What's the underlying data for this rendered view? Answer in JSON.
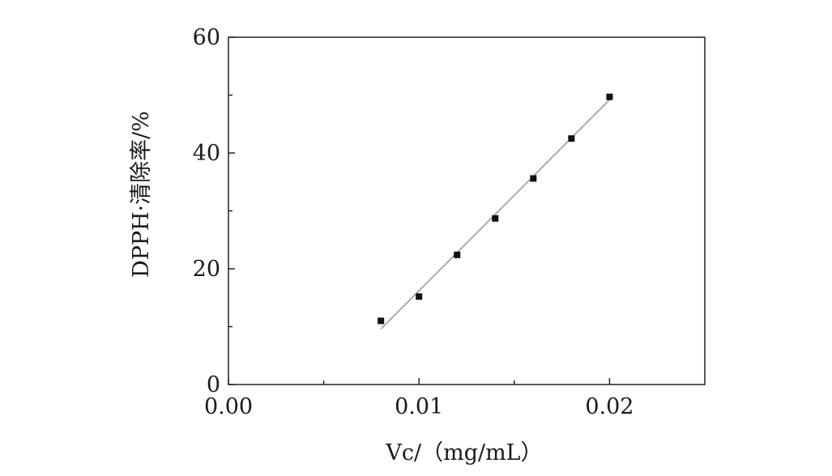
{
  "chart_data": {
    "type": "scatter",
    "xlabel": "Vc/（mg/mL）",
    "ylabel": "DPPH·清除率/%",
    "xlim": [
      0,
      0.025
    ],
    "ylim": [
      0,
      60
    ],
    "x_ticks": [
      {
        "value": 0,
        "label": "0.00"
      },
      {
        "value": 0.01,
        "label": "0.01"
      },
      {
        "value": 0.02,
        "label": "0.02"
      }
    ],
    "x_minor_ticks": [
      0.005,
      0.015
    ],
    "y_ticks": [
      {
        "value": 0,
        "label": "0"
      },
      {
        "value": 20,
        "label": "20"
      },
      {
        "value": 40,
        "label": "40"
      },
      {
        "value": 60,
        "label": "60"
      }
    ],
    "y_minor_ticks": [
      10,
      30,
      50
    ],
    "grid": false,
    "series": [
      {
        "x": [
          0.008,
          0.01,
          0.012,
          0.014,
          0.016,
          0.018,
          0.02
        ],
        "y": [
          11.0,
          15.2,
          22.4,
          28.7,
          35.6,
          42.5,
          49.7
        ]
      }
    ],
    "fit_line": {
      "x": [
        0.008,
        0.02
      ],
      "y": [
        9.6,
        49.2
      ]
    },
    "colors": {
      "marker": "#111111",
      "fit_line": "#9a9a9a",
      "axis": "#222222"
    }
  }
}
